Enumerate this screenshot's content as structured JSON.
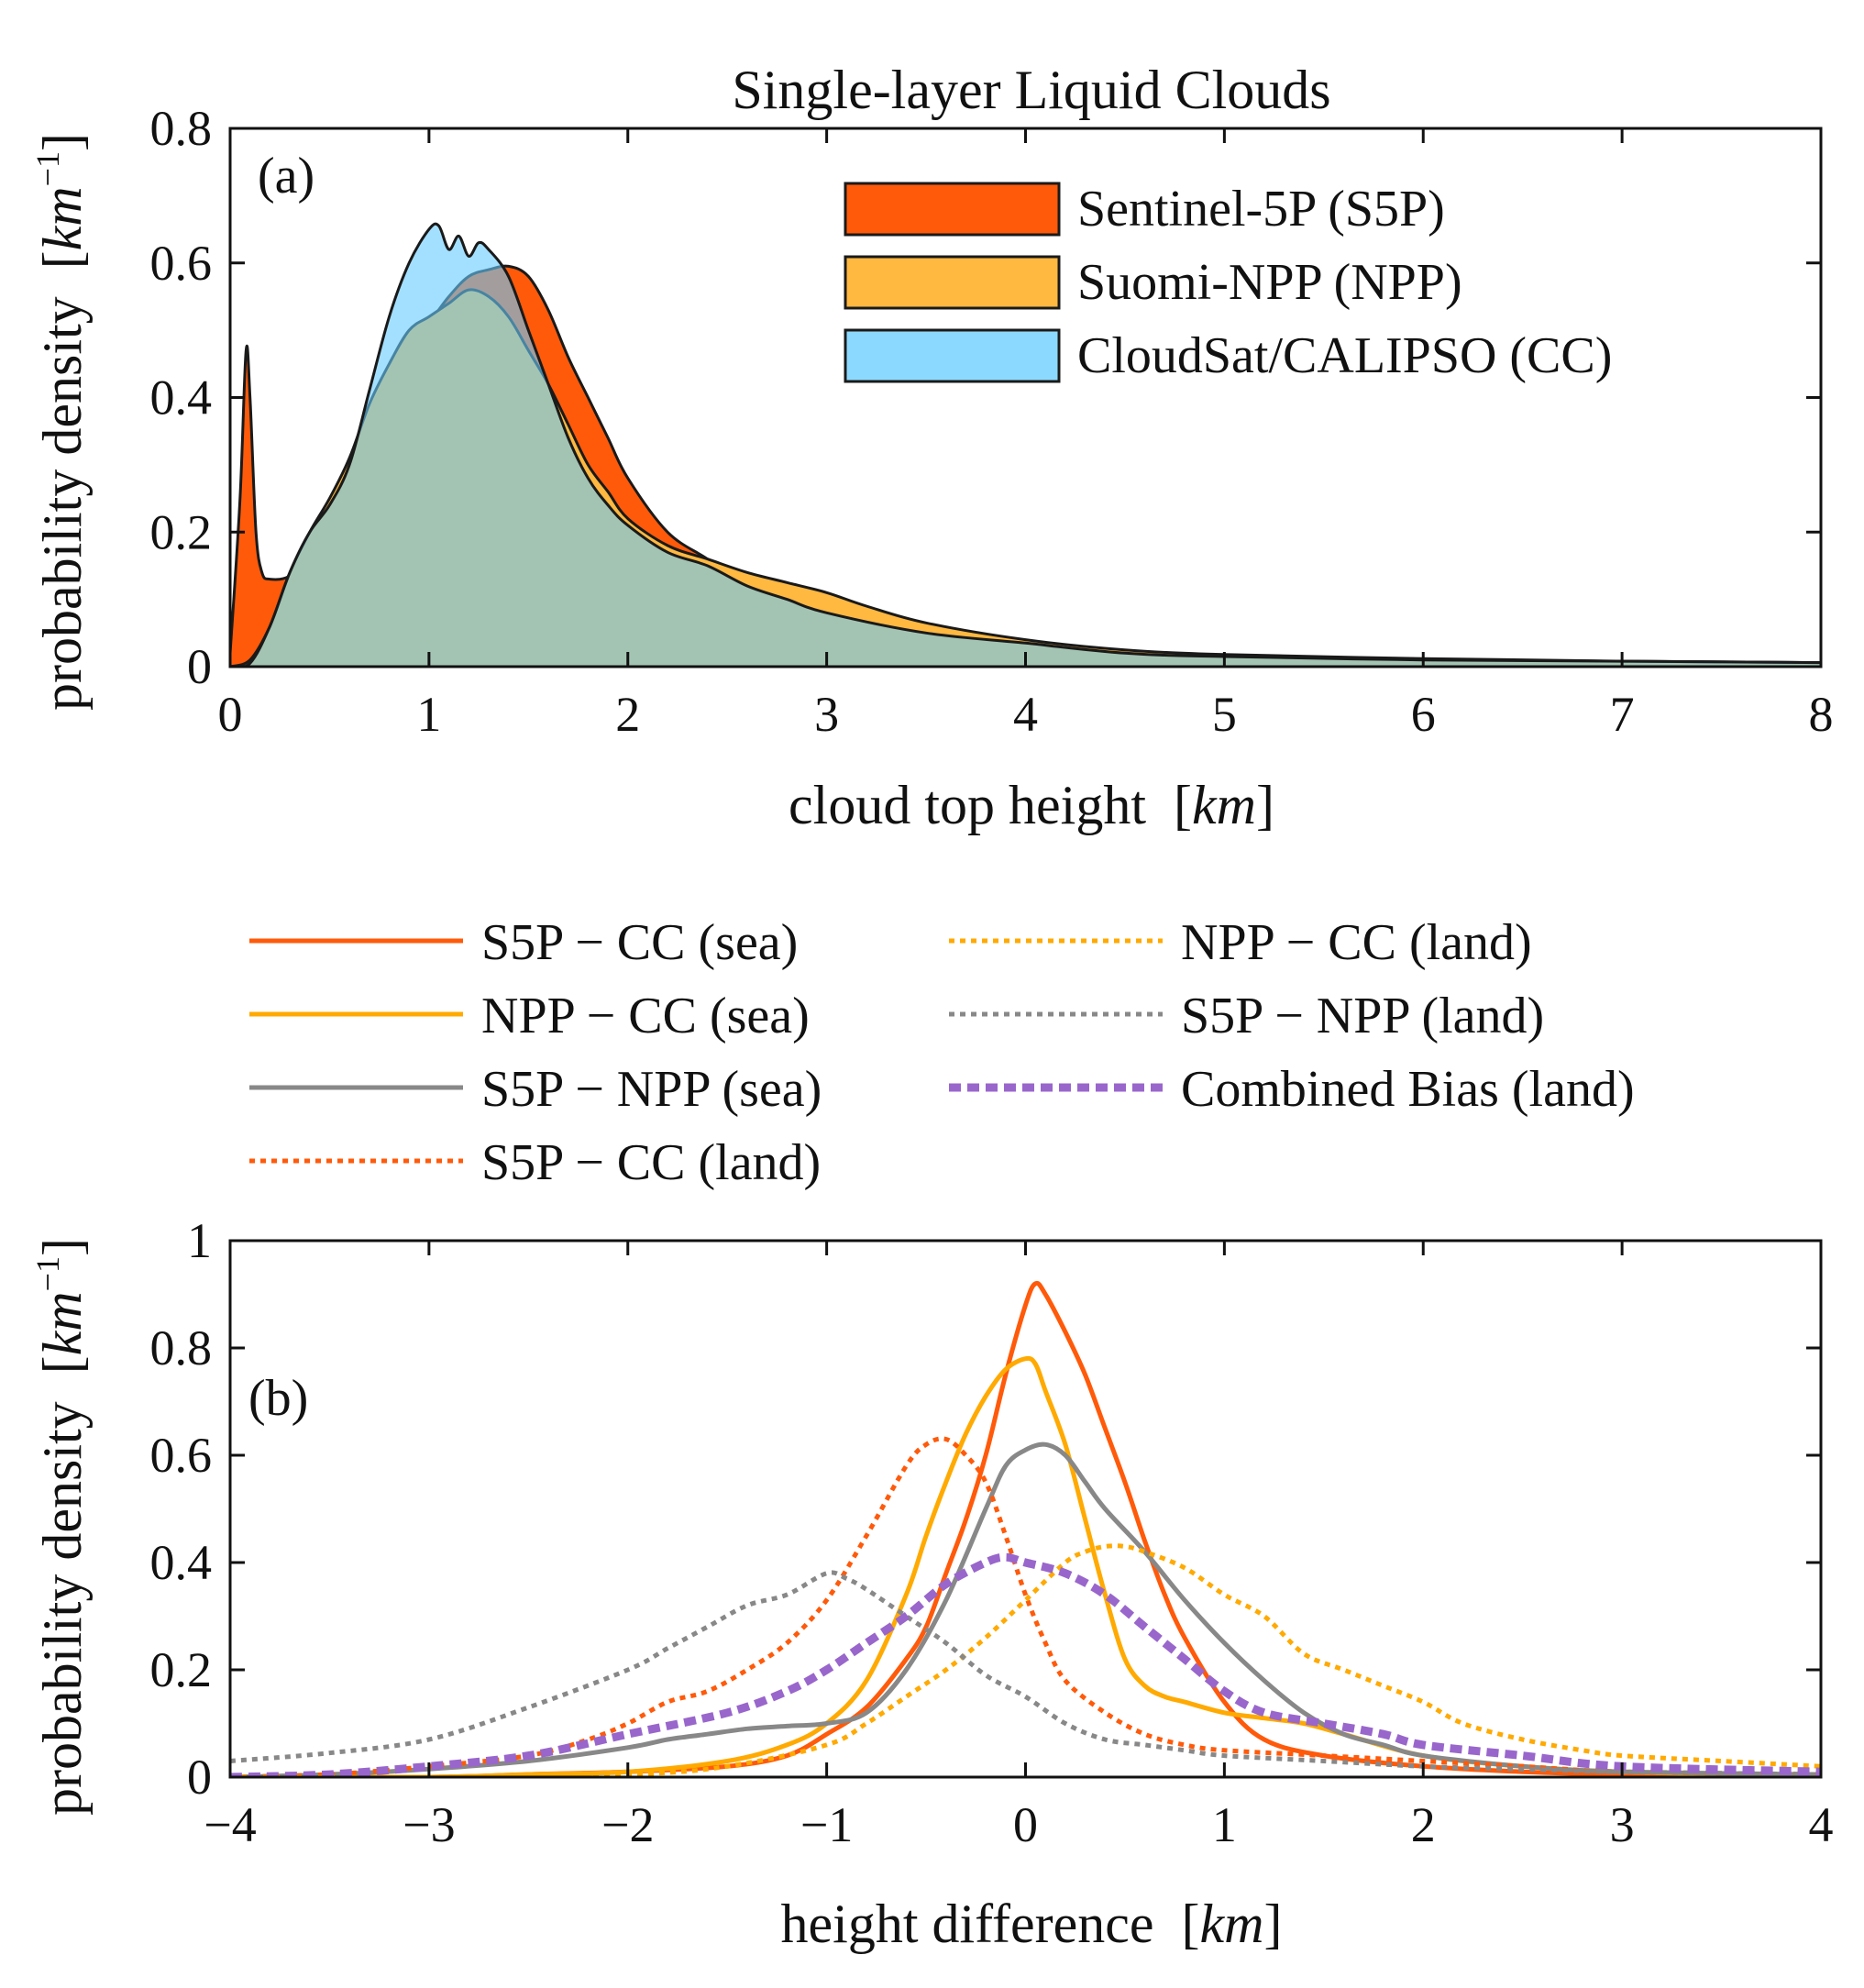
{
  "chart_data": [
    {
      "type": "area",
      "panel_label": "(a)",
      "title": "Single-layer Liquid Clouds",
      "xlabel": "cloud top height",
      "xunit": "km",
      "ylabel": "probability density",
      "yunit": "km",
      "yunit_exp": "−1",
      "xlim": [
        0,
        8
      ],
      "ylim": [
        0,
        0.8
      ],
      "xticks": [
        "0",
        "1",
        "2",
        "3",
        "4",
        "5",
        "6",
        "7",
        "8"
      ],
      "yticks": [
        "0",
        "0.2",
        "0.4",
        "0.6",
        "0.8"
      ],
      "legend_position": "top-right",
      "series": [
        {
          "name": "Sentinel-5P (S5P)",
          "color": "#FF5A0A",
          "opacity": 1.0,
          "x": [
            0,
            0.05,
            0.08,
            0.1,
            0.13,
            0.16,
            0.2,
            0.3,
            0.4,
            0.5,
            0.6,
            0.7,
            0.8,
            0.9,
            1.0,
            1.1,
            1.2,
            1.3,
            1.4,
            1.5,
            1.6,
            1.7,
            1.8,
            1.9,
            2.0,
            2.2,
            2.4,
            2.6,
            2.8,
            3.0,
            3.5,
            4.0,
            4.5,
            5.0,
            6.0,
            7.0,
            8.0
          ],
          "y": [
            0.02,
            0.25,
            0.47,
            0.4,
            0.2,
            0.14,
            0.13,
            0.135,
            0.17,
            0.22,
            0.28,
            0.35,
            0.42,
            0.47,
            0.51,
            0.55,
            0.58,
            0.59,
            0.595,
            0.58,
            0.53,
            0.46,
            0.4,
            0.34,
            0.28,
            0.2,
            0.16,
            0.12,
            0.1,
            0.08,
            0.05,
            0.03,
            0.02,
            0.015,
            0.01,
            0.008,
            0.006
          ]
        },
        {
          "name": "Suomi-NPP (NPP)",
          "color": "#FFB840",
          "opacity": 1.0,
          "x": [
            0,
            0.1,
            0.2,
            0.3,
            0.4,
            0.5,
            0.6,
            0.7,
            0.8,
            0.9,
            1.0,
            1.1,
            1.2,
            1.3,
            1.4,
            1.5,
            1.6,
            1.7,
            1.8,
            1.9,
            2.0,
            2.2,
            2.4,
            2.6,
            2.8,
            3.0,
            3.2,
            3.5,
            4.0,
            4.5,
            5.0,
            6.0,
            7.0,
            8.0
          ],
          "y": [
            0.0,
            0.01,
            0.06,
            0.14,
            0.2,
            0.25,
            0.31,
            0.39,
            0.45,
            0.5,
            0.52,
            0.54,
            0.56,
            0.55,
            0.52,
            0.47,
            0.42,
            0.36,
            0.3,
            0.26,
            0.22,
            0.18,
            0.16,
            0.14,
            0.125,
            0.11,
            0.09,
            0.065,
            0.04,
            0.025,
            0.018,
            0.012,
            0.008,
            0.006
          ]
        },
        {
          "name": "CloudSat/CALIPSO (CC)",
          "color": "#66CCFF",
          "opacity": 0.6,
          "x": [
            0,
            0.1,
            0.2,
            0.3,
            0.4,
            0.5,
            0.6,
            0.7,
            0.8,
            0.9,
            1.0,
            1.05,
            1.1,
            1.15,
            1.2,
            1.25,
            1.3,
            1.4,
            1.5,
            1.6,
            1.7,
            1.8,
            1.9,
            2.0,
            2.2,
            2.4,
            2.6,
            2.8,
            3.0,
            3.5,
            4.0,
            4.5,
            5.0,
            6.0,
            7.0,
            8.0
          ],
          "y": [
            0.0,
            0.005,
            0.06,
            0.14,
            0.2,
            0.24,
            0.3,
            0.41,
            0.52,
            0.6,
            0.65,
            0.655,
            0.62,
            0.64,
            0.61,
            0.63,
            0.62,
            0.58,
            0.5,
            0.42,
            0.34,
            0.28,
            0.24,
            0.21,
            0.17,
            0.15,
            0.12,
            0.1,
            0.08,
            0.05,
            0.035,
            0.02,
            0.015,
            0.01,
            0.008,
            0.006
          ]
        }
      ]
    },
    {
      "type": "line",
      "panel_label": "(b)",
      "xlabel": "height difference",
      "xunit": "km",
      "ylabel": "probability density",
      "yunit": "km",
      "yunit_exp": "−1",
      "xlim": [
        -4,
        4
      ],
      "ylim": [
        0,
        1
      ],
      "xticks": [
        "−4",
        "−3",
        "−2",
        "−1",
        "0",
        "1",
        "2",
        "3",
        "4"
      ],
      "yticks": [
        "0",
        "0.2",
        "0.4",
        "0.6",
        "0.8",
        "1"
      ],
      "legend_position": "above",
      "series": [
        {
          "name": "S5P − CC (sea)",
          "color": "#FF5A0A",
          "style": "solid",
          "x": [
            -4,
            -3,
            -2.5,
            -2,
            -1.5,
            -1.2,
            -1.0,
            -0.8,
            -0.6,
            -0.5,
            -0.4,
            -0.3,
            -0.2,
            -0.1,
            0.0,
            0.05,
            0.1,
            0.2,
            0.3,
            0.4,
            0.5,
            0.6,
            0.7,
            0.8,
            1.0,
            1.2,
            1.5,
            2.0,
            2.5,
            3.0,
            4.0
          ],
          "y": [
            0.0,
            0.0,
            0.005,
            0.01,
            0.02,
            0.04,
            0.08,
            0.13,
            0.22,
            0.28,
            0.38,
            0.48,
            0.6,
            0.75,
            0.88,
            0.92,
            0.9,
            0.83,
            0.75,
            0.65,
            0.55,
            0.44,
            0.34,
            0.26,
            0.14,
            0.07,
            0.04,
            0.02,
            0.01,
            0.005,
            0.0
          ]
        },
        {
          "name": "NPP − CC (sea)",
          "color": "#FFAA00",
          "style": "solid",
          "x": [
            -4,
            -3,
            -2.5,
            -2,
            -1.5,
            -1.2,
            -1.0,
            -0.8,
            -0.6,
            -0.5,
            -0.4,
            -0.3,
            -0.2,
            -0.1,
            0.0,
            0.05,
            0.1,
            0.2,
            0.3,
            0.4,
            0.5,
            0.6,
            0.7,
            0.8,
            1.0,
            1.2,
            1.4,
            1.6,
            2.0,
            2.5,
            3.0,
            4.0
          ],
          "y": [
            0.0,
            0.0,
            0.005,
            0.01,
            0.03,
            0.06,
            0.1,
            0.18,
            0.34,
            0.45,
            0.55,
            0.64,
            0.71,
            0.76,
            0.78,
            0.77,
            0.72,
            0.62,
            0.48,
            0.34,
            0.22,
            0.17,
            0.15,
            0.14,
            0.12,
            0.11,
            0.1,
            0.08,
            0.04,
            0.02,
            0.01,
            0.0
          ]
        },
        {
          "name": "S5P − NPP (sea)",
          "color": "#888888",
          "style": "solid",
          "x": [
            -4,
            -3.5,
            -3,
            -2.5,
            -2.0,
            -1.8,
            -1.6,
            -1.4,
            -1.2,
            -1.0,
            -0.8,
            -0.6,
            -0.4,
            -0.2,
            -0.1,
            0.0,
            0.1,
            0.2,
            0.3,
            0.4,
            0.6,
            0.8,
            1.0,
            1.2,
            1.4,
            1.6,
            1.8,
            2.0,
            2.5,
            3.0,
            4.0
          ],
          "y": [
            0.0,
            0.005,
            0.015,
            0.03,
            0.055,
            0.07,
            0.08,
            0.09,
            0.095,
            0.1,
            0.12,
            0.2,
            0.33,
            0.5,
            0.58,
            0.61,
            0.62,
            0.6,
            0.55,
            0.5,
            0.42,
            0.33,
            0.25,
            0.18,
            0.12,
            0.08,
            0.06,
            0.04,
            0.02,
            0.01,
            0.005
          ]
        },
        {
          "name": "S5P − CC (land)",
          "color": "#FF5A0A",
          "style": "dotted",
          "x": [
            -4,
            -3.5,
            -3,
            -2.5,
            -2.2,
            -2.0,
            -1.8,
            -1.6,
            -1.4,
            -1.2,
            -1.0,
            -0.8,
            -0.6,
            -0.5,
            -0.4,
            -0.3,
            -0.2,
            -0.1,
            0.0,
            0.1,
            0.2,
            0.4,
            0.6,
            0.8,
            1.0,
            1.5,
            2.0,
            2.5,
            3.0,
            4.0
          ],
          "y": [
            0.0,
            0.005,
            0.02,
            0.04,
            0.07,
            0.1,
            0.14,
            0.16,
            0.2,
            0.25,
            0.33,
            0.45,
            0.58,
            0.62,
            0.63,
            0.6,
            0.55,
            0.45,
            0.34,
            0.25,
            0.18,
            0.12,
            0.08,
            0.06,
            0.05,
            0.04,
            0.03,
            0.02,
            0.01,
            0.005
          ]
        },
        {
          "name": "NPP − CC (land)",
          "color": "#FFAA00",
          "style": "dotted",
          "x": [
            -4,
            -3,
            -2,
            -1.5,
            -1.0,
            -0.8,
            -0.6,
            -0.4,
            -0.2,
            0.0,
            0.2,
            0.3,
            0.4,
            0.5,
            0.6,
            0.8,
            1.0,
            1.2,
            1.4,
            1.6,
            1.8,
            2.0,
            2.2,
            2.5,
            2.8,
            3.0,
            3.5,
            4.0
          ],
          "y": [
            0.0,
            0.0,
            0.005,
            0.02,
            0.06,
            0.1,
            0.15,
            0.2,
            0.26,
            0.33,
            0.4,
            0.42,
            0.43,
            0.43,
            0.42,
            0.39,
            0.34,
            0.3,
            0.23,
            0.2,
            0.17,
            0.14,
            0.1,
            0.07,
            0.05,
            0.04,
            0.03,
            0.02
          ]
        },
        {
          "name": "S5P − NPP (land)",
          "color": "#888888",
          "style": "dotted",
          "x": [
            -4,
            -3.5,
            -3.0,
            -2.5,
            -2.0,
            -1.8,
            -1.6,
            -1.4,
            -1.2,
            -1.0,
            -0.9,
            -0.8,
            -0.6,
            -0.4,
            -0.2,
            0.0,
            0.2,
            0.4,
            0.6,
            0.8,
            1.0,
            1.5,
            2.0,
            2.5,
            3.0,
            4.0
          ],
          "y": [
            0.03,
            0.045,
            0.07,
            0.13,
            0.2,
            0.24,
            0.28,
            0.32,
            0.34,
            0.38,
            0.37,
            0.35,
            0.3,
            0.25,
            0.19,
            0.15,
            0.1,
            0.07,
            0.06,
            0.05,
            0.04,
            0.03,
            0.02,
            0.015,
            0.01,
            0.005
          ]
        },
        {
          "name": "Combined Bias (land)",
          "color": "#9966CC",
          "style": "dashed",
          "x": [
            -4,
            -3.5,
            -3.0,
            -2.5,
            -2.0,
            -1.5,
            -1.2,
            -1.0,
            -0.8,
            -0.6,
            -0.4,
            -0.2,
            -0.1,
            0.0,
            0.2,
            0.4,
            0.6,
            0.8,
            1.0,
            1.2,
            1.5,
            1.8,
            2.0,
            2.5,
            3.0,
            4.0
          ],
          "y": [
            0.0,
            0.005,
            0.02,
            0.04,
            0.08,
            0.12,
            0.16,
            0.2,
            0.25,
            0.3,
            0.36,
            0.4,
            0.41,
            0.4,
            0.38,
            0.34,
            0.28,
            0.22,
            0.16,
            0.12,
            0.1,
            0.08,
            0.06,
            0.04,
            0.02,
            0.01
          ]
        }
      ]
    }
  ]
}
